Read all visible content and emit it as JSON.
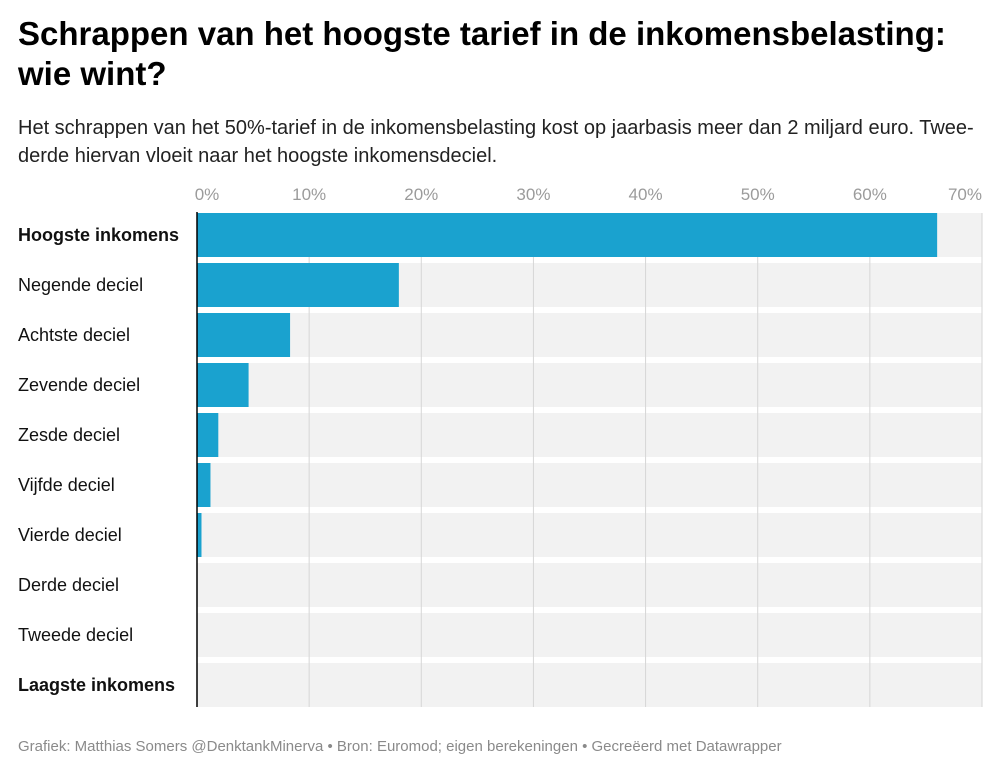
{
  "title": "Schrappen van het hoogste tarief in de inkomensbelasting: wie wint?",
  "subtitle": "Het schrappen van het 50%-tarief in de inkomensbelasting kost op jaarbasis meer dan 2 miljard euro. Twee-derde hiervan vloeit naar het hoogste inkomensdeciel.",
  "footer": "Grafiek: Matthias Somers @DenktankMinerva • Bron: Euromod; eigen berekeningen • Gecreëerd met Datawrapper",
  "colors": {
    "bar": "#1aa2cf",
    "track": "#f2f2f2",
    "grid": "#d6d6d6",
    "axis": "#000000"
  },
  "chart_data": {
    "type": "bar",
    "orientation": "horizontal",
    "title": "Schrappen van het hoogste tarief in de inkomensbelasting: wie wint?",
    "xlim": [
      0,
      70
    ],
    "x_ticks": [
      0,
      10,
      20,
      30,
      40,
      50,
      60,
      70
    ],
    "x_tick_labels": [
      "0%",
      "10%",
      "20%",
      "30%",
      "40%",
      "50%",
      "60%",
      "70%"
    ],
    "grid": true,
    "categories": [
      "Hoogste inkomens",
      "Negende deciel",
      "Achtste deciel",
      "Zevende deciel",
      "Zesde deciel",
      "Vijfde deciel",
      "Vierde deciel",
      "Derde deciel",
      "Tweede deciel",
      "Laagste inkomens"
    ],
    "bold_categories": [
      "Hoogste inkomens",
      "Laagste inkomens"
    ],
    "values": [
      66.0,
      18.0,
      8.3,
      4.6,
      1.9,
      1.2,
      0.4,
      0.0,
      0.0,
      0.0
    ]
  }
}
